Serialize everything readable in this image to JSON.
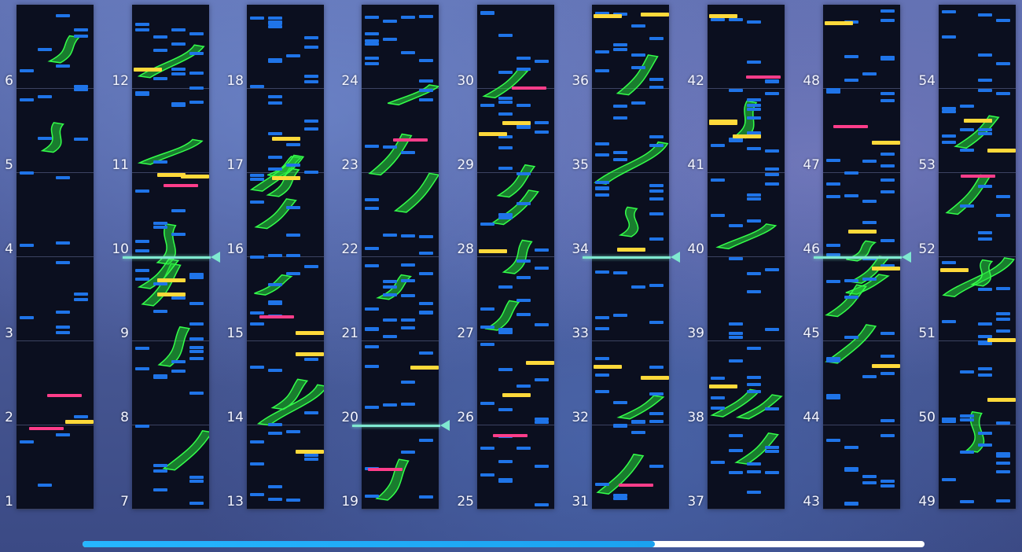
{
  "bar_labels": [
    "1",
    "2",
    "3",
    "4",
    "5",
    "6",
    "7",
    "8",
    "9",
    "10",
    "11",
    "12",
    "13",
    "14",
    "15",
    "16",
    "17",
    "18",
    "19",
    "20",
    "21",
    "22",
    "23",
    "24",
    "25",
    "26",
    "27",
    "28",
    "29",
    "30",
    "31",
    "32",
    "33",
    "34",
    "35",
    "36",
    "37",
    "38",
    "39",
    "40",
    "41",
    "42",
    "43",
    "44",
    "45",
    "46",
    "47",
    "48",
    "49",
    "50",
    "51",
    "52",
    "53",
    "54"
  ],
  "columns": [
    {
      "first_bar": 1,
      "last_bar": 6
    },
    {
      "first_bar": 7,
      "last_bar": 12
    },
    {
      "first_bar": 13,
      "last_bar": 18
    },
    {
      "first_bar": 19,
      "last_bar": 24
    },
    {
      "first_bar": 25,
      "last_bar": 30
    },
    {
      "first_bar": 31,
      "last_bar": 36
    },
    {
      "first_bar": 37,
      "last_bar": 42
    },
    {
      "first_bar": 43,
      "last_bar": 48
    },
    {
      "first_bar": 49,
      "last_bar": 54
    }
  ],
  "playheads": [
    {
      "bar": 10
    },
    {
      "bar": 20
    },
    {
      "bar": 34
    },
    {
      "bar": 46
    }
  ],
  "scroll_progress": 0.68,
  "colors": {
    "tap_note": "#1f74e8",
    "hold_note": "#27d83a",
    "flick_note": "#ffd93a",
    "critical_note": "#ff3d8a",
    "playhead": "#7fe8d0",
    "scroll_thumb": "#1ba2f0"
  }
}
